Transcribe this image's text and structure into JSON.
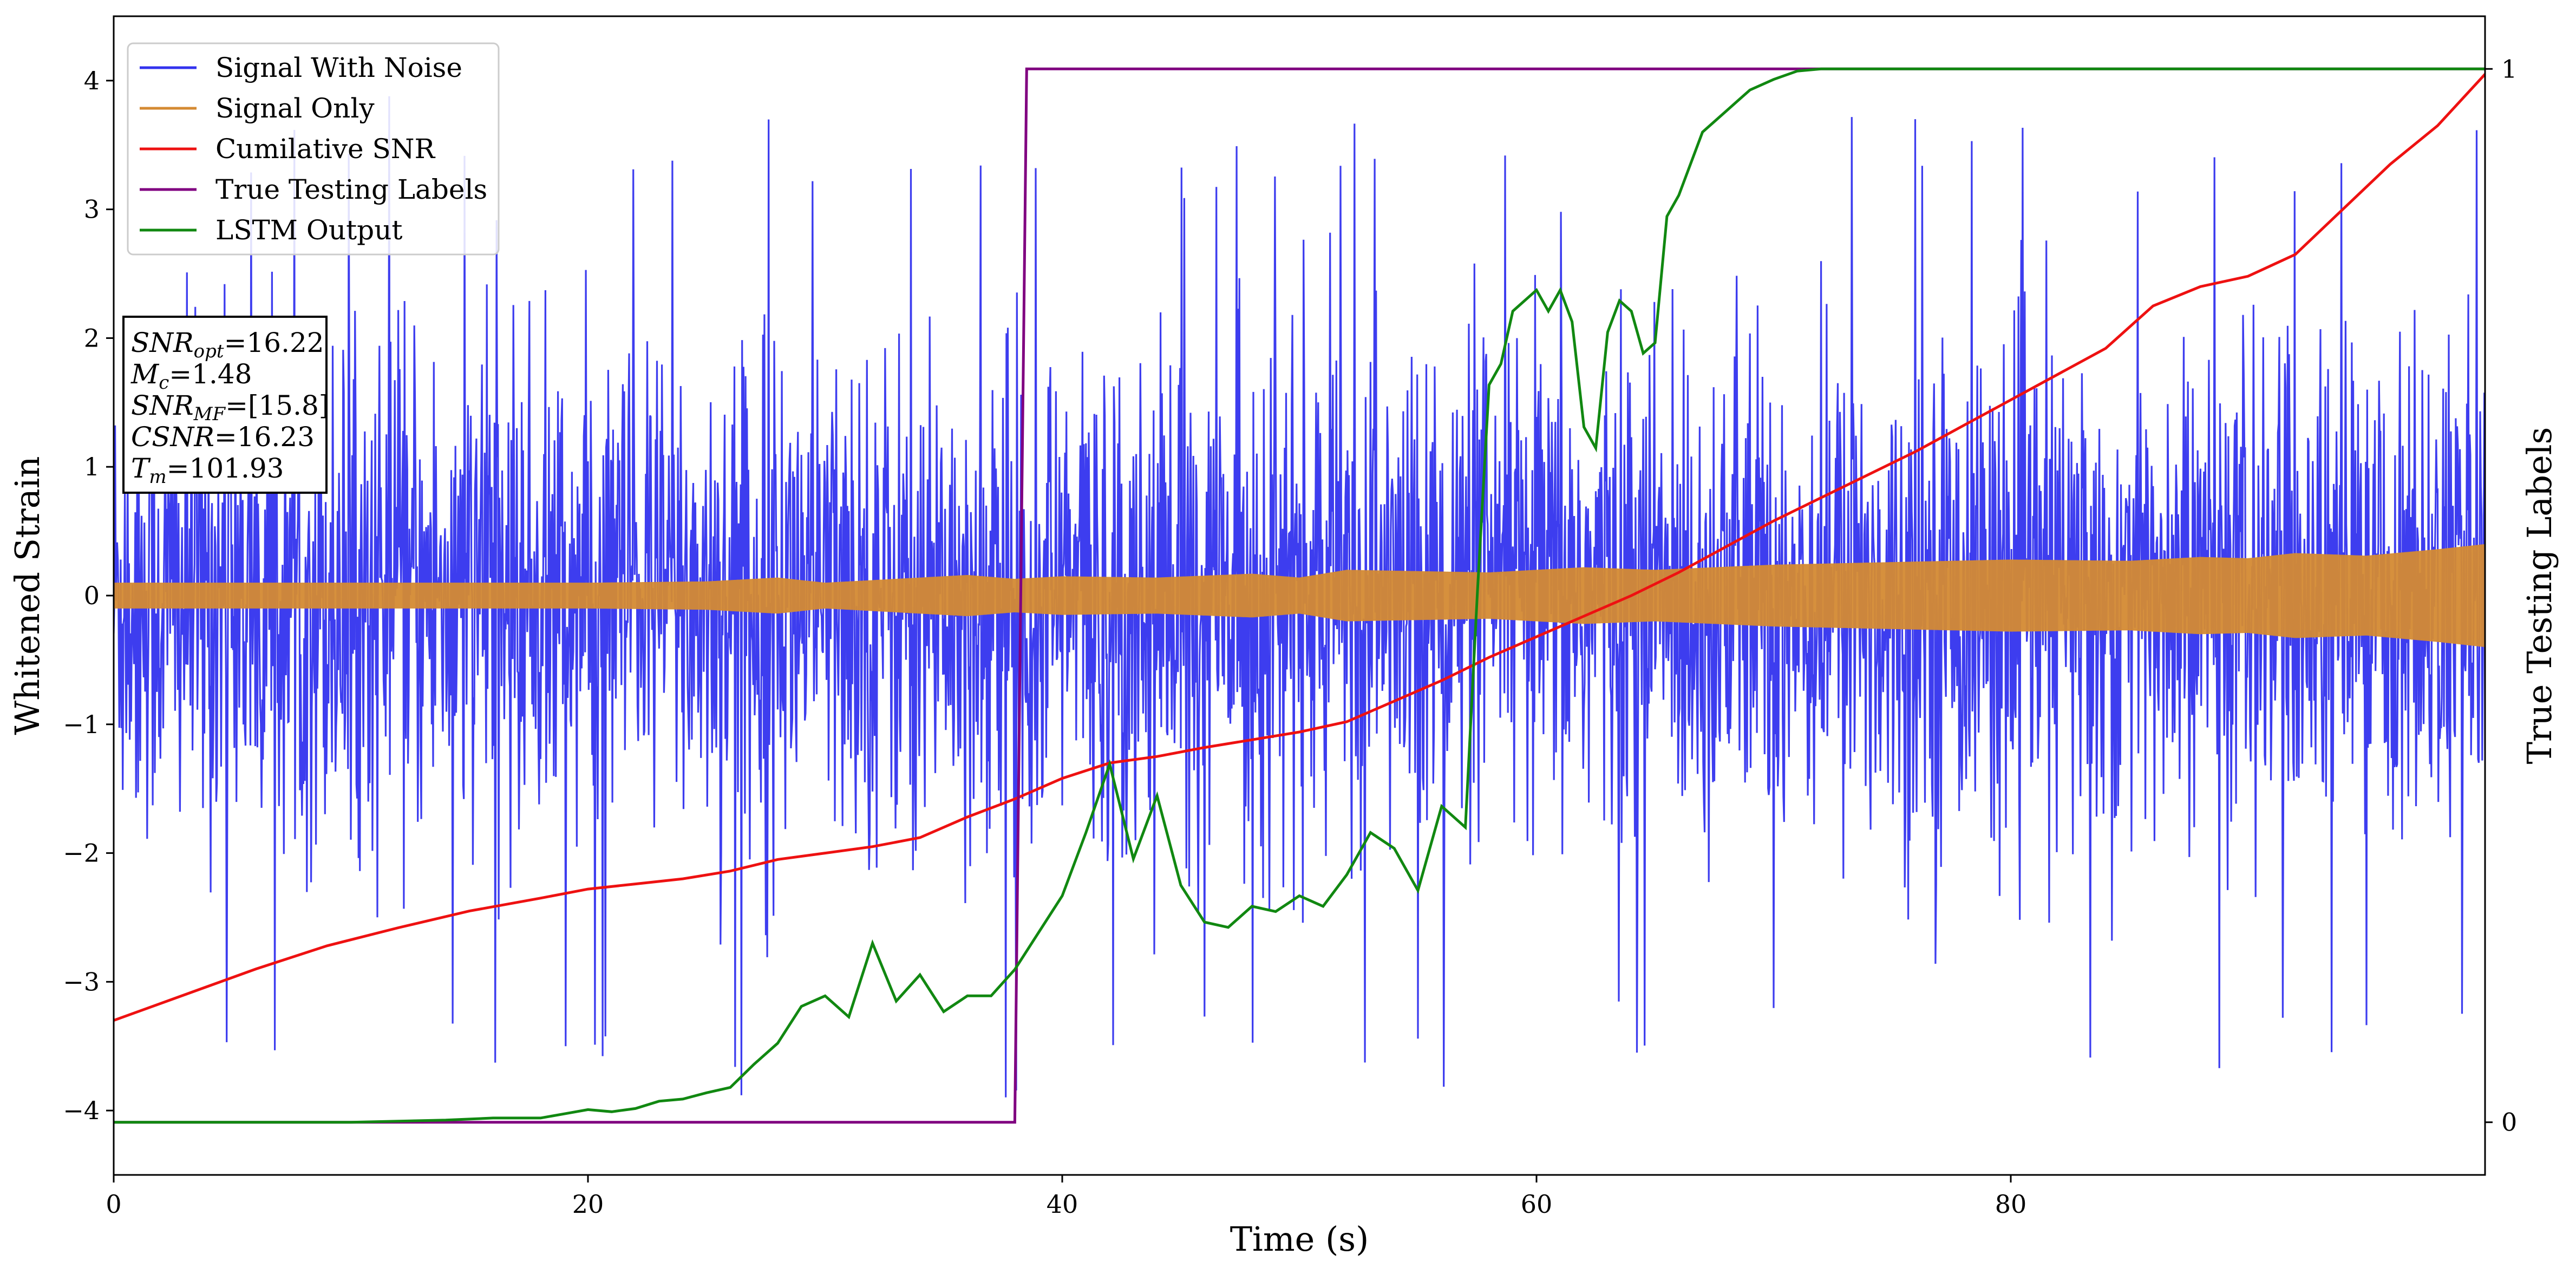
{
  "chart_data": {
    "type": "line",
    "xlabel": "Time (s)",
    "ylabel": "Whitened Strain",
    "y2label": "True Testing Labels",
    "xlim": [
      0,
      100
    ],
    "ylim": [
      -4.5,
      4.5
    ],
    "y2lim": [
      -0.05,
      1.05
    ],
    "grid": false,
    "legend_position": "top-left",
    "x_ticks": [
      "0",
      "20",
      "40",
      "60",
      "80"
    ],
    "y_ticks": [
      "4",
      "3",
      "2",
      "1",
      "0",
      "−1",
      "−2",
      "−3",
      "−4"
    ],
    "y2_ticks": [
      "1",
      "0"
    ],
    "colors": {
      "signal_with_noise": "#3333ee",
      "signal_only": "#d48a33",
      "cumulative_snr": "#ee1111",
      "true_labels": "#800080",
      "lstm_output": "#118811"
    },
    "series": [
      {
        "name": "Signal With Noise",
        "axis": "left",
        "description_values": "noise band spanning roughly -2.5 to 2.5 with spikes to about ±3.9",
        "band": {
          "typical_low": -2.6,
          "typical_high": 2.6,
          "spikes_high": [
            3.3,
            3.9
          ],
          "spikes_low": [
            -3.9,
            -4.1
          ]
        }
      },
      {
        "name": "Signal Only",
        "axis": "left",
        "envelope": {
          "x": [
            0,
            5,
            10,
            15,
            20,
            25,
            28,
            30,
            33,
            36,
            38,
            40,
            44,
            48,
            50,
            52,
            55,
            58,
            60,
            62,
            65,
            70,
            75,
            80,
            85,
            88,
            90,
            92,
            95,
            98,
            100
          ],
          "amp": [
            0.1,
            0.1,
            0.1,
            0.1,
            0.1,
            0.11,
            0.14,
            0.1,
            0.13,
            0.16,
            0.13,
            0.15,
            0.14,
            0.17,
            0.14,
            0.2,
            0.19,
            0.18,
            0.2,
            0.22,
            0.2,
            0.24,
            0.26,
            0.28,
            0.27,
            0.3,
            0.29,
            0.33,
            0.31,
            0.36,
            0.4
          ]
        }
      },
      {
        "name": "Cumilative SNR",
        "axis": "left",
        "x": [
          0,
          3,
          6,
          9,
          12,
          15,
          18,
          20,
          22,
          24,
          26,
          28,
          30,
          32,
          34,
          36,
          38,
          40,
          42,
          44,
          46,
          48,
          50,
          52,
          54,
          56,
          58,
          60,
          62,
          64,
          66,
          68,
          70,
          72,
          74,
          76,
          78,
          80,
          82,
          84,
          86,
          88,
          90,
          92,
          94,
          96,
          98,
          100
        ],
        "y": [
          -3.3,
          -3.1,
          -2.9,
          -2.72,
          -2.58,
          -2.45,
          -2.35,
          -2.28,
          -2.24,
          -2.2,
          -2.14,
          -2.05,
          -2.0,
          -1.95,
          -1.88,
          -1.72,
          -1.58,
          -1.42,
          -1.3,
          -1.25,
          -1.18,
          -1.12,
          -1.06,
          -0.98,
          -0.82,
          -0.66,
          -0.48,
          -0.32,
          -0.16,
          0.0,
          0.18,
          0.38,
          0.58,
          0.76,
          0.94,
          1.12,
          1.32,
          1.52,
          1.72,
          1.92,
          2.25,
          2.4,
          2.48,
          2.65,
          3.0,
          3.35,
          3.65,
          4.05
        ]
      },
      {
        "name": "True Testing Labels",
        "axis": "right",
        "x": [
          0,
          38.0,
          38.5,
          100
        ],
        "y": [
          0,
          0,
          1,
          1
        ]
      },
      {
        "name": "LSTM Output",
        "axis": "right",
        "x": [
          0,
          10,
          14,
          16,
          18,
          19,
          20,
          21,
          22,
          23,
          24,
          25,
          26,
          27,
          28,
          29,
          30,
          31,
          32,
          33,
          34,
          35,
          36,
          37,
          38,
          39,
          40,
          41,
          42,
          43,
          44,
          45,
          46,
          47,
          48,
          49,
          50,
          51,
          52,
          53,
          54,
          55,
          56,
          57,
          57.5,
          58,
          58.5,
          59,
          59.5,
          60,
          60.5,
          61,
          61.5,
          62,
          62.5,
          63,
          63.5,
          64,
          64.5,
          65,
          65.5,
          66,
          67,
          68,
          68.5,
          69,
          70,
          71,
          72,
          73,
          80,
          100
        ],
        "y": [
          0,
          0,
          0.002,
          0.004,
          0.004,
          0.008,
          0.012,
          0.01,
          0.013,
          0.02,
          0.022,
          0.028,
          0.033,
          0.055,
          0.075,
          0.11,
          0.12,
          0.1,
          0.17,
          0.115,
          0.14,
          0.105,
          0.12,
          0.12,
          0.145,
          0.18,
          0.215,
          0.275,
          0.34,
          0.25,
          0.31,
          0.225,
          0.19,
          0.185,
          0.205,
          0.2,
          0.215,
          0.205,
          0.235,
          0.275,
          0.26,
          0.22,
          0.3,
          0.28,
          0.5,
          0.7,
          0.72,
          0.77,
          0.78,
          0.79,
          0.77,
          0.79,
          0.76,
          0.66,
          0.64,
          0.75,
          0.78,
          0.77,
          0.73,
          0.74,
          0.86,
          0.88,
          0.94,
          0.96,
          0.97,
          0.98,
          0.99,
          0.998,
          1.0,
          1.0,
          1.0,
          1.0
        ]
      }
    ],
    "legend": [
      "Signal With Noise",
      "Signal Only",
      "Cumilative SNR",
      "True Testing Labels",
      "LSTM Output"
    ],
    "annotation": {
      "lines": [
        {
          "main": "SNR",
          "sub": "opt",
          "value": "=16.22"
        },
        {
          "main": "M",
          "sub": "c",
          "value": "=1.48"
        },
        {
          "main": "SNR",
          "sub": "MF",
          "value": "=[15.8]"
        },
        {
          "main": "CSNR",
          "sub": "",
          "value": "=16.23"
        },
        {
          "main": "T",
          "sub": "m",
          "value": "=101.93"
        }
      ]
    }
  }
}
